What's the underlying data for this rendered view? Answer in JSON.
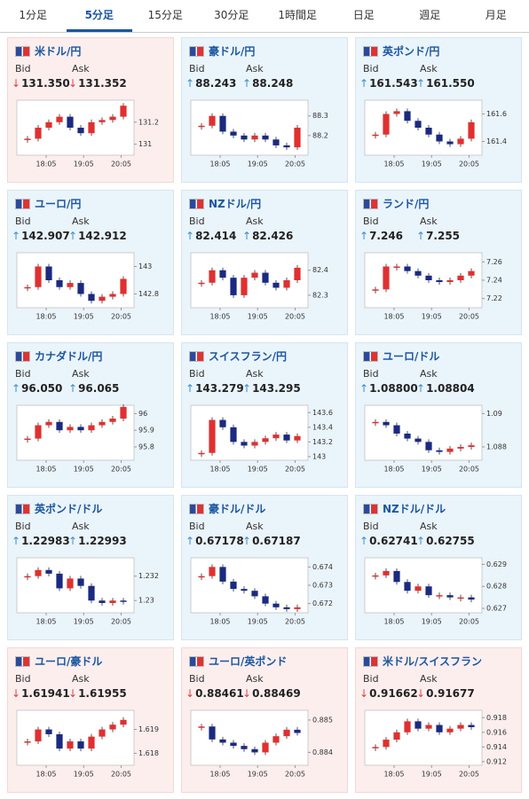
{
  "tabs": [
    "1分足",
    "5分足",
    "15分足",
    "30分足",
    "1時間足",
    "日足",
    "週足",
    "月足"
  ],
  "active_tab": "5分足",
  "cards": [
    {
      "name": "米ドル/円",
      "trend": "down",
      "bid_label": "Bid",
      "ask_label": "Ask",
      "bid": "131.350",
      "ask": "131.352",
      "chart": {
        "ylim": [
          130.9,
          131.4
        ],
        "yticks": [
          131.2,
          131
        ],
        "xticks": [
          "18:05",
          "19:05",
          "20:05"
        ],
        "values": [
          131.05,
          131.15,
          131.2,
          131.25,
          131.15,
          131.1,
          131.2,
          131.22,
          131.25,
          131.35
        ]
      }
    },
    {
      "name": "豪ドル/円",
      "trend": "up",
      "bid_label": "Bid",
      "ask_label": "Ask",
      "bid": "88.243",
      "ask": "88.248",
      "chart": {
        "ylim": [
          88.1,
          88.38
        ],
        "yticks": [
          88.3,
          88.2
        ],
        "xticks": [
          "18:05",
          "19:05",
          "20:05"
        ],
        "values": [
          88.25,
          88.3,
          88.22,
          88.2,
          88.18,
          88.2,
          88.18,
          88.15,
          88.14,
          88.24
        ]
      }
    },
    {
      "name": "英ポンド/円",
      "trend": "up",
      "bid_label": "Bid",
      "ask_label": "Ask",
      "bid": "161.543",
      "ask": "161.550",
      "chart": {
        "ylim": [
          161.3,
          161.7
        ],
        "yticks": [
          161.6,
          161.4
        ],
        "xticks": [
          "18:05",
          "19:05",
          "20:05"
        ],
        "values": [
          161.45,
          161.6,
          161.62,
          161.55,
          161.5,
          161.45,
          161.4,
          161.38,
          161.42,
          161.54
        ]
      }
    },
    {
      "name": "ユーロ/円",
      "trend": "up",
      "bid_label": "Bid",
      "ask_label": "Ask",
      "bid": "142.907",
      "ask": "142.912",
      "chart": {
        "ylim": [
          142.7,
          143.1
        ],
        "yticks": [
          143,
          142.8
        ],
        "xticks": [
          "18:05",
          "19:05",
          "20:05"
        ],
        "values": [
          142.85,
          143.0,
          142.9,
          142.85,
          142.88,
          142.8,
          142.75,
          142.78,
          142.8,
          142.91
        ]
      }
    },
    {
      "name": "NZドル/円",
      "trend": "up",
      "bid_label": "Bid",
      "ask_label": "Ask",
      "bid": "82.414",
      "ask": "82.426",
      "chart": {
        "ylim": [
          82.25,
          82.47
        ],
        "yticks": [
          82.4,
          82.3
        ],
        "xticks": [
          "18:05",
          "19:05",
          "20:05"
        ],
        "values": [
          82.35,
          82.4,
          82.37,
          82.3,
          82.37,
          82.39,
          82.35,
          82.33,
          82.36,
          82.41
        ]
      }
    },
    {
      "name": "ランド/円",
      "trend": "up",
      "bid_label": "Bid",
      "ask_label": "Ask",
      "bid": "7.246",
      "ask": "7.255",
      "chart": {
        "ylim": [
          7.21,
          7.27
        ],
        "yticks": [
          7.26,
          7.24,
          7.22
        ],
        "xticks": [
          "18:05",
          "19:05",
          "20:05"
        ],
        "values": [
          7.23,
          7.255,
          7.255,
          7.25,
          7.245,
          7.24,
          7.238,
          7.24,
          7.245,
          7.25
        ]
      }
    },
    {
      "name": "カナダドル/円",
      "trend": "up",
      "bid_label": "Bid",
      "ask_label": "Ask",
      "bid": "96.050",
      "ask": "96.065",
      "chart": {
        "ylim": [
          95.72,
          96.05
        ],
        "yticks": [
          96,
          95.9,
          95.8
        ],
        "xticks": [
          "18:05",
          "19:05",
          "20:05"
        ],
        "values": [
          95.85,
          95.93,
          95.95,
          95.9,
          95.92,
          95.9,
          95.93,
          95.95,
          95.97,
          96.04
        ]
      }
    },
    {
      "name": "スイスフラン/円",
      "trend": "up",
      "bid_label": "Bid",
      "ask_label": "Ask",
      "bid": "143.279",
      "ask": "143.295",
      "chart": {
        "ylim": [
          142.95,
          143.7
        ],
        "yticks": [
          143.6,
          143.4,
          143.2,
          143
        ],
        "xticks": [
          "18:05",
          "19:05",
          "20:05"
        ],
        "values": [
          143.05,
          143.5,
          143.4,
          143.2,
          143.15,
          143.2,
          143.25,
          143.3,
          143.22,
          143.28
        ]
      }
    },
    {
      "name": "ユーロ/ドル",
      "trend": "up",
      "bid_label": "Bid",
      "ask_label": "Ask",
      "bid": "1.08800",
      "ask": "1.08804",
      "chart": {
        "ylim": [
          1.0872,
          1.0905
        ],
        "yticks": [
          1.09,
          1.088
        ],
        "xticks": [
          "18:05",
          "19:05",
          "20:05"
        ],
        "values": [
          1.0895,
          1.0893,
          1.0888,
          1.0885,
          1.0883,
          1.0878,
          1.0877,
          1.0879,
          1.088,
          1.0881
        ]
      }
    },
    {
      "name": "英ポンド/ドル",
      "trend": "up",
      "bid_label": "Bid",
      "ask_label": "Ask",
      "bid": "1.22983",
      "ask": "1.22993",
      "chart": {
        "ylim": [
          1.229,
          1.2335
        ],
        "yticks": [
          1.232,
          1.23
        ],
        "xticks": [
          "18:05",
          "19:05",
          "20:05"
        ],
        "values": [
          1.232,
          1.2325,
          1.2322,
          1.231,
          1.2318,
          1.2312,
          1.23,
          1.2298,
          1.23,
          1.2299
        ]
      }
    },
    {
      "name": "豪ドル/ドル",
      "trend": "up",
      "bid_label": "Bid",
      "ask_label": "Ask",
      "bid": "0.67178",
      "ask": "0.67187",
      "chart": {
        "ylim": [
          0.6715,
          0.6745
        ],
        "yticks": [
          0.674,
          0.673,
          0.672
        ],
        "xticks": [
          "18:05",
          "19:05",
          "20:05"
        ],
        "values": [
          0.6735,
          0.674,
          0.6732,
          0.6728,
          0.6727,
          0.6724,
          0.672,
          0.6718,
          0.6717,
          0.6718
        ]
      }
    },
    {
      "name": "NZドル/ドル",
      "trend": "up",
      "bid_label": "Bid",
      "ask_label": "Ask",
      "bid": "0.62741",
      "ask": "0.62755",
      "chart": {
        "ylim": [
          0.6268,
          0.6293
        ],
        "yticks": [
          0.629,
          0.628,
          0.627
        ],
        "xticks": [
          "18:05",
          "19:05",
          "20:05"
        ],
        "values": [
          0.6285,
          0.6287,
          0.6282,
          0.6278,
          0.628,
          0.6276,
          0.6276,
          0.6275,
          0.6275,
          0.6274
        ]
      }
    },
    {
      "name": "ユーロ/豪ドル",
      "trend": "down",
      "bid_label": "Bid",
      "ask_label": "Ask",
      "bid": "1.61941",
      "ask": "1.61955",
      "chart": {
        "ylim": [
          1.6175,
          1.6198
        ],
        "yticks": [
          1.619,
          1.618
        ],
        "xticks": [
          "18:05",
          "19:05",
          "20:05"
        ],
        "values": [
          1.6185,
          1.619,
          1.6188,
          1.6182,
          1.6185,
          1.6182,
          1.6187,
          1.619,
          1.6192,
          1.6194
        ]
      }
    },
    {
      "name": "ユーロ/英ポンド",
      "trend": "down",
      "bid_label": "Bid",
      "ask_label": "Ask",
      "bid": "0.88461",
      "ask": "0.88469",
      "chart": {
        "ylim": [
          0.8836,
          0.8853
        ],
        "yticks": [
          0.885,
          0.884
        ],
        "xticks": [
          "18:05",
          "19:05",
          "20:05"
        ],
        "values": [
          0.8848,
          0.8844,
          0.8843,
          0.8842,
          0.8841,
          0.884,
          0.8843,
          0.8845,
          0.8847,
          0.8846
        ]
      }
    },
    {
      "name": "米ドル/スイスフラン",
      "trend": "down",
      "bid_label": "Bid",
      "ask_label": "Ask",
      "bid": "0.91662",
      "ask": "0.91677",
      "chart": {
        "ylim": [
          0.9115,
          0.919
        ],
        "yticks": [
          0.918,
          0.916,
          0.914,
          0.912
        ],
        "xticks": [
          "18:05",
          "19:05",
          "20:05"
        ],
        "values": [
          0.914,
          0.915,
          0.916,
          0.9175,
          0.9165,
          0.917,
          0.916,
          0.9165,
          0.917,
          0.9167
        ]
      }
    }
  ]
}
